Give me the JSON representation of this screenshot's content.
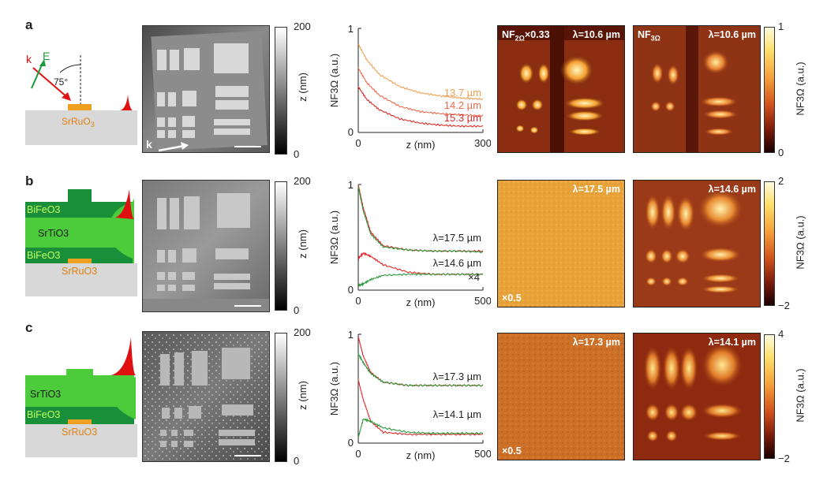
{
  "panels": [
    {
      "label": "a",
      "schematic": {
        "k_label": "k",
        "e_label": "E",
        "angle_label": "75°",
        "substrate": "SrRuO",
        "substrate_sub": "3"
      },
      "afm": {
        "scale_max": "200",
        "scale_min": "0",
        "scale_unit": "z (nm)",
        "arrow_label": "k"
      },
      "chart_data": {
        "type": "line",
        "xlabel": "z (nm)",
        "ylabel": "NF3Ω (a.u.)",
        "xlim": [
          0,
          300
        ],
        "ylim": [
          0,
          1
        ],
        "xticks": [
          "0",
          "300"
        ],
        "yticks": [
          "0",
          "1"
        ],
        "series": [
          {
            "name": "13.7 µm",
            "color": "#f0a050",
            "x": [
              0,
              20,
              50,
              100,
              150,
              200,
              250,
              300
            ],
            "y": [
              0.85,
              0.7,
              0.56,
              0.44,
              0.38,
              0.35,
              0.33,
              0.32
            ]
          },
          {
            "name": "14.2 µm",
            "color": "#ec6a4a",
            "x": [
              0,
              20,
              50,
              100,
              150,
              200,
              250,
              300
            ],
            "y": [
              0.62,
              0.48,
              0.36,
              0.25,
              0.2,
              0.18,
              0.17,
              0.16
            ]
          },
          {
            "name": "15.3 µm",
            "color": "#e02a2a",
            "x": [
              0,
              20,
              50,
              100,
              150,
              200,
              250,
              300
            ],
            "y": [
              0.44,
              0.32,
              0.22,
              0.13,
              0.09,
              0.07,
              0.06,
              0.06
            ]
          }
        ]
      },
      "map1": {
        "tag": "NF",
        "tag_sub": "2Ω",
        "tag_suffix": "×0.33",
        "lambda": "λ=10.6 µm"
      },
      "map2": {
        "tag": "NF",
        "tag_sub": "3Ω",
        "lambda": "λ=10.6 µm"
      },
      "nf_scale": {
        "max": "1",
        "min": "0",
        "unit": "NF3Ω (a.u.)"
      }
    },
    {
      "label": "b",
      "schematic": {
        "layers": [
          "BiFeO3",
          "SrTiO3",
          "BiFeO3",
          "SrRuO3"
        ]
      },
      "afm": {
        "scale_max": "200",
        "scale_min": "0",
        "scale_unit": "z (nm)"
      },
      "chart_data": {
        "type": "line",
        "xlabel": "z (nm)",
        "ylabel": "NF3Ω (a.u.)",
        "xlim": [
          0,
          500
        ],
        "ylim": [
          0,
          1
        ],
        "xticks": [
          "0",
          "500"
        ],
        "yticks": [
          "0",
          "1"
        ],
        "annotations": [
          "λ=17.5 µm",
          "λ=14.6 µm",
          "×4"
        ],
        "series": [
          {
            "name": "17.5 µm (red)",
            "color": "#e02a2a",
            "x": [
              0,
              20,
              50,
              100,
              200,
              300,
              400,
              500
            ],
            "y": [
              1.0,
              0.78,
              0.55,
              0.42,
              0.38,
              0.37,
              0.37,
              0.37
            ]
          },
          {
            "name": "17.5 µm (green)",
            "color": "#2a9a3a",
            "x": [
              0,
              20,
              50,
              100,
              200,
              300,
              400,
              500
            ],
            "y": [
              0.98,
              0.75,
              0.53,
              0.41,
              0.38,
              0.37,
              0.37,
              0.36
            ]
          },
          {
            "name": "14.6 µm (red)",
            "color": "#e02a2a",
            "x": [
              0,
              20,
              50,
              100,
              200,
              300,
              400,
              500
            ],
            "y": [
              0.3,
              0.35,
              0.32,
              0.24,
              0.17,
              0.15,
              0.15,
              0.15
            ]
          },
          {
            "name": "14.6 µm (green)",
            "color": "#2a9a3a",
            "x": [
              0,
              20,
              50,
              100,
              200,
              300,
              400,
              500
            ],
            "y": [
              0.04,
              0.06,
              0.1,
              0.14,
              0.15,
              0.15,
              0.15,
              0.15
            ]
          }
        ]
      },
      "map1": {
        "lambda": "λ=17.5 µm",
        "factor": "×0.5"
      },
      "map2": {
        "lambda": "λ=14.6 µm"
      },
      "nf_scale": {
        "max": "2",
        "min": "−2",
        "unit": "NF3Ω (a.u.)"
      }
    },
    {
      "label": "c",
      "schematic": {
        "layers": [
          "SrTiO3",
          "BiFeO3",
          "SrRuO3"
        ]
      },
      "afm": {
        "scale_max": "200",
        "scale_min": "0",
        "scale_unit": "z (nm)"
      },
      "chart_data": {
        "type": "line",
        "xlabel": "z (nm)",
        "ylabel": "NF3Ω (a.u.)",
        "xlim": [
          0,
          500
        ],
        "ylim": [
          0,
          1
        ],
        "xticks": [
          "0",
          "500"
        ],
        "yticks": [
          "0",
          "1"
        ],
        "annotations": [
          "λ=17.3 µm",
          "λ=14.1 µm"
        ],
        "series": [
          {
            "name": "17.3 µm (red)",
            "color": "#e02a2a",
            "x": [
              0,
              20,
              50,
              100,
              200,
              300,
              400,
              500
            ],
            "y": [
              0.98,
              0.8,
              0.65,
              0.56,
              0.53,
              0.53,
              0.53,
              0.53
            ]
          },
          {
            "name": "17.3 µm (green)",
            "color": "#2a9a3a",
            "x": [
              0,
              20,
              50,
              100,
              200,
              300,
              400,
              500
            ],
            "y": [
              0.82,
              0.74,
              0.64,
              0.56,
              0.53,
              0.53,
              0.53,
              0.53
            ]
          },
          {
            "name": "14.1 µm (red)",
            "color": "#e02a2a",
            "x": [
              0,
              20,
              50,
              100,
              200,
              300,
              400,
              500
            ],
            "y": [
              0.58,
              0.4,
              0.2,
              0.1,
              0.08,
              0.08,
              0.08,
              0.08
            ]
          },
          {
            "name": "14.1 µm (green)",
            "color": "#2a9a3a",
            "x": [
              0,
              20,
              50,
              100,
              200,
              300,
              400,
              500
            ],
            "y": [
              0.05,
              0.22,
              0.2,
              0.14,
              0.1,
              0.09,
              0.09,
              0.09
            ]
          }
        ]
      },
      "map1": {
        "lambda": "λ=17.3 µm",
        "factor": "×0.5"
      },
      "map2": {
        "lambda": "λ=14.1 µm"
      },
      "nf_scale": {
        "max": "4",
        "min": "−2",
        "unit": "NF3Ω (a.u.)"
      }
    }
  ],
  "colors": {
    "substrate": "#d8d8d8",
    "sro": "#f0a020",
    "bfo": "#1a8f3a",
    "sto": "#4ccc3a",
    "field": "#e01010",
    "k_arrow": "#e01010",
    "e_arrow": "#1a9a3a"
  }
}
